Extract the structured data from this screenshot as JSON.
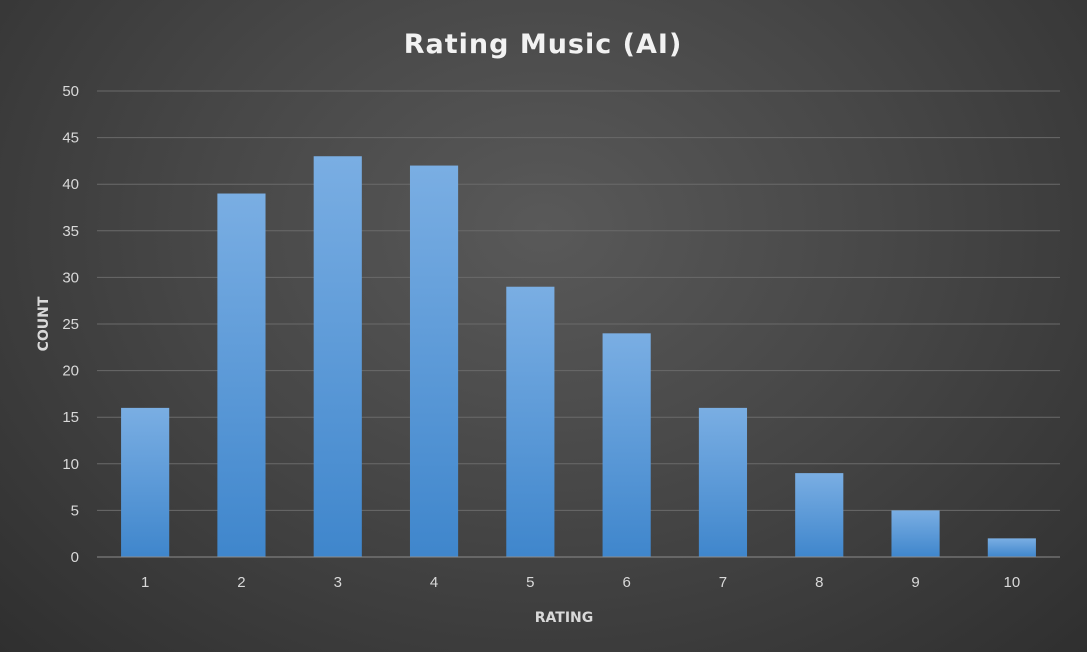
{
  "chart_data": {
    "type": "bar",
    "title": "Rating Music (AI)",
    "xlabel": "RATING",
    "ylabel": "COUNT",
    "categories": [
      "1",
      "2",
      "3",
      "4",
      "5",
      "6",
      "7",
      "8",
      "9",
      "10"
    ],
    "values": [
      16,
      39,
      43,
      42,
      29,
      24,
      16,
      9,
      5,
      2
    ],
    "ylim": [
      0,
      50
    ],
    "yticks": [
      "0",
      "5",
      "10",
      "15",
      "20",
      "25",
      "30",
      "35",
      "40",
      "45",
      "50"
    ],
    "grid": true,
    "legend": "none",
    "colors": {
      "bar_top": "#7aaee3",
      "bar_bottom": "#3f86cc",
      "background": "#474747"
    }
  }
}
